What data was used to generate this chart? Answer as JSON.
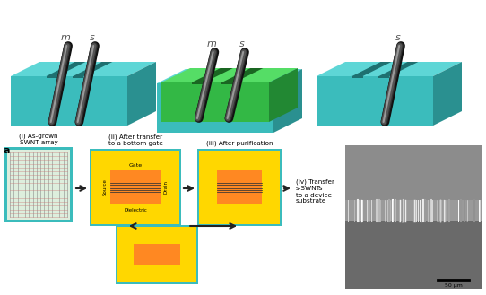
{
  "fig_width": 5.42,
  "fig_height": 3.29,
  "dpi": 100,
  "bg_color": "#ffffff",
  "teal_front": "#3bbcbc",
  "teal_top": "#5ed6d6",
  "teal_right": "#2a9090",
  "teal_groove": "#1e7070",
  "green_front": "#33b845",
  "green_top": "#55dd66",
  "green_right": "#228833",
  "green_groove": "#1a6622",
  "nt_dark": "#1a1a1a",
  "nt_mid": "#4a4a4a",
  "nt_light": "#888888",
  "yellow": "#FFD700",
  "orange": "#FF8822",
  "gold": "#E8A000",
  "sem_top": "#909090",
  "sem_mid": "#787878",
  "sem_bot": "#686868",
  "sem_band": "#aaaaaa",
  "label_i": "(i) As-grown\nSWNT array",
  "label_ii": "(ii) After transfer\nto a bottom gate",
  "label_iii": "(iii) After purification",
  "label_iv": "(iv) Transfer\ns-SWNTs\nto a device\nsubstrate",
  "scale_bar_text": "50 μm"
}
